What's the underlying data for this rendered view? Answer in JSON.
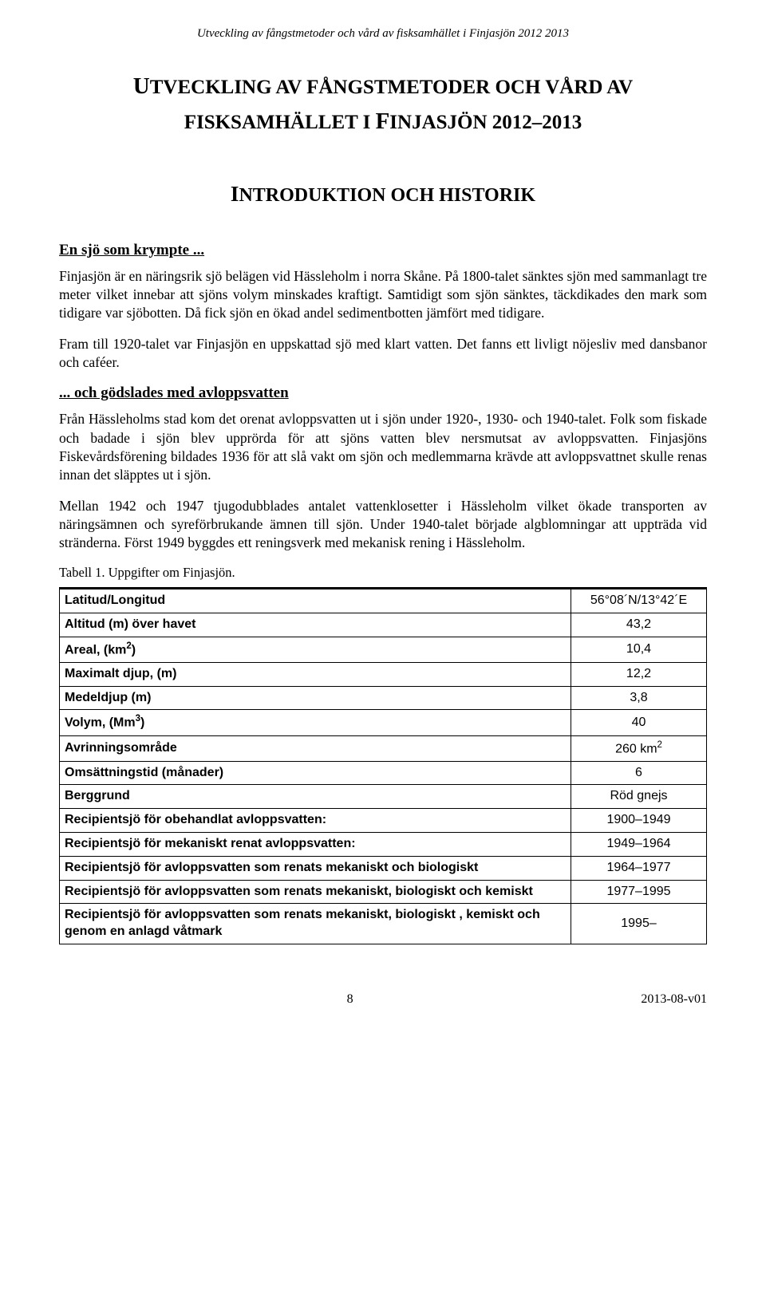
{
  "running_header": "Utveckling av fångstmetoder och vård av fisksamhället i Finjasjön 2012 2013",
  "title_line1_pre": "U",
  "title_line1_rest": "TVECKLING AV FÅNGSTMETODER OCH VÅRD AV",
  "title_line2_rest1": "FISKSAMHÄLLET I ",
  "title_line2_pre2": "F",
  "title_line2_rest2": "INJASJÖN 2012–2013",
  "section_pre": "I",
  "section_rest": "NTRODUKTION OCH HISTORIK",
  "sub1": "En sjö som krympte ...",
  "p1": "Finjasjön är en näringsrik sjö belägen vid Hässleholm i norra Skåne. På 1800-talet sänktes sjön med sammanlagt tre meter vilket innebar att sjöns volym minskades kraftigt. Samtidigt som sjön sänktes, täckdikades den mark som tidigare var sjöbotten. Då fick sjön en ökad andel sedimentbotten jämfört med tidigare.",
  "p2": "Fram till 1920-talet var Finjasjön en uppskattad sjö med klart vatten. Det fanns ett livligt nöjesliv med dansbanor och caféer.",
  "sub2": "... och gödslades med avloppsvatten",
  "p3": "Från Hässleholms stad kom det orenat avloppsvatten ut i sjön under 1920-, 1930- och 1940-talet. Folk som fiskade och badade i sjön blev upprörda för att sjöns vatten blev nersmutsat av avloppsvatten. Finjasjöns Fiskevårdsförening bildades 1936 för att slå vakt om sjön och medlemmarna krävde att avloppsvattnet skulle renas innan det släpptes ut i sjön.",
  "p4": "Mellan 1942 och 1947 tjugodubblades antalet vattenklosetter i Hässleholm vilket ökade transporten av näringsämnen och syreförbrukande ämnen till sjön. Under 1940-talet började algblomningar att uppträda vid stränderna. Först 1949 byggdes ett reningsverk med mekanisk rening i Hässleholm.",
  "table_caption": "Tabell 1. Uppgifter om Finjasjön.",
  "rows": [
    {
      "label": "Latitud/Longitud",
      "value": "56°08´N/13°42´E"
    },
    {
      "label": "Altitud (m) över havet",
      "value": "43,2"
    },
    {
      "label_html": "Areal, (km<span class=\"sup\">2</span>)",
      "value": "10,4"
    },
    {
      "label": "Maximalt djup, (m)",
      "value": "12,2"
    },
    {
      "label": "Medeldjup (m)",
      "value": "3,8"
    },
    {
      "label_html": "Volym, (Mm<span class=\"sup\">3</span>)",
      "value": "40"
    },
    {
      "label": "Avrinningsområde",
      "value_html": "260 km<span class=\"sup\">2</span>"
    },
    {
      "label": "Omsättningstid (månader)",
      "value": "6"
    },
    {
      "label": "Berggrund",
      "value": "Röd gnejs"
    },
    {
      "label": "Recipientsjö för obehandlat avloppsvatten:",
      "value": "1900–1949"
    },
    {
      "label": "Recipientsjö för mekaniskt renat avloppsvatten:",
      "value": "1949–1964"
    },
    {
      "label": "Recipientsjö för avloppsvatten som renats mekaniskt och biologiskt",
      "value": "1964–1977"
    },
    {
      "label": "Recipientsjö för avloppsvatten som renats mekaniskt, biologiskt och kemiskt",
      "value": "1977–1995"
    },
    {
      "label": "Recipientsjö för avloppsvatten som renats mekaniskt, biologiskt , kemiskt och genom en anlagd våtmark",
      "value": "1995–"
    }
  ],
  "footer_page": "8",
  "footer_version": "2013-08-v01"
}
